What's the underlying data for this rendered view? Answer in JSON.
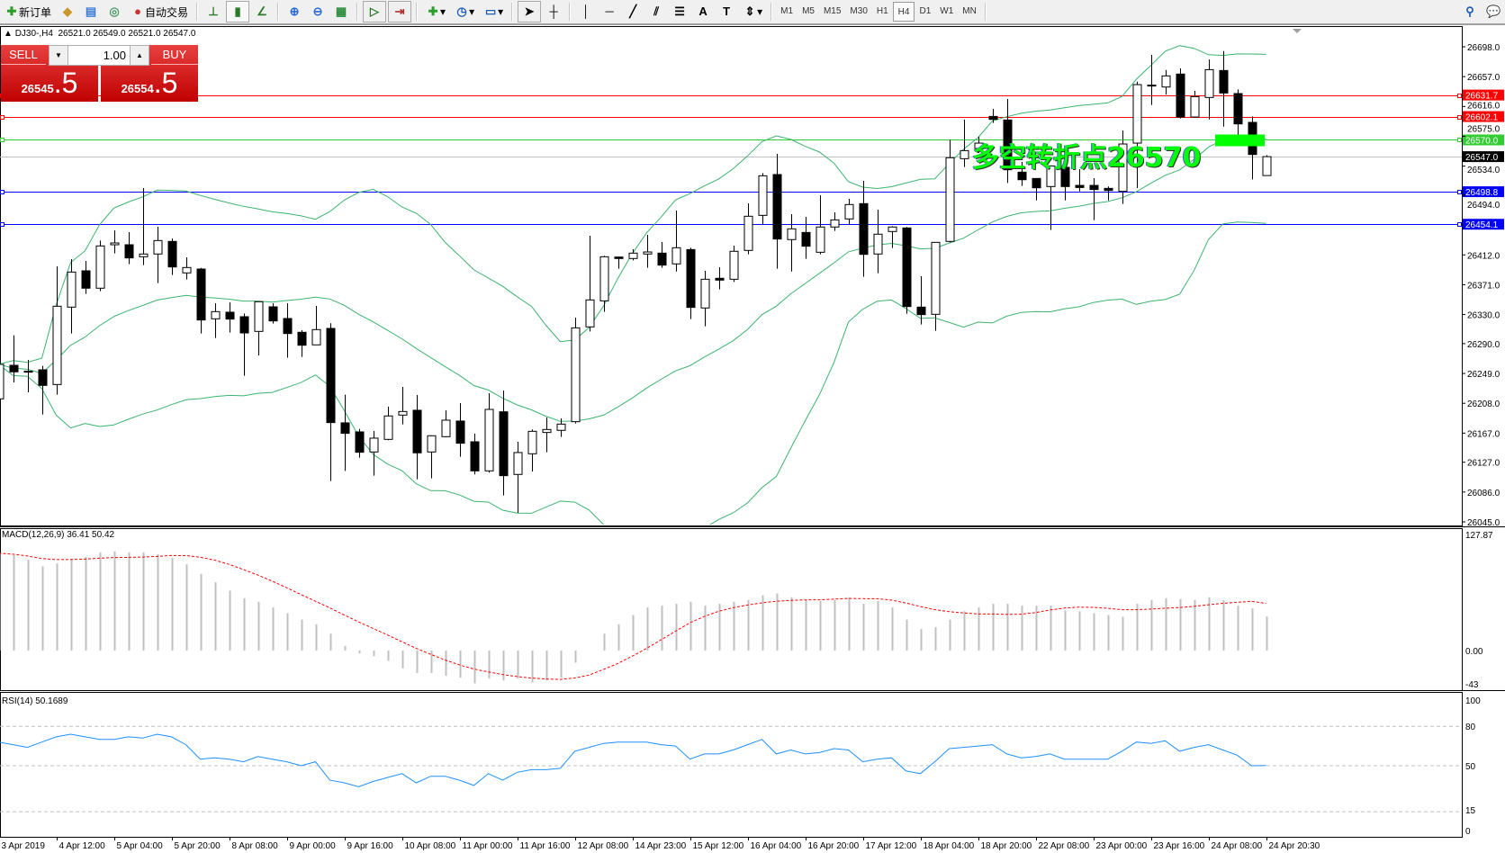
{
  "toolbar": {
    "new_order": "新订单",
    "auto_trading": "自动交易",
    "timeframes": [
      "M1",
      "M5",
      "M15",
      "M30",
      "H1",
      "H4",
      "D1",
      "W1",
      "MN"
    ],
    "active_timeframe": "H4",
    "icons": [
      "new-order-icon",
      "market-watch-icon",
      "navigator-icon",
      "signals-icon",
      "auto-trading-icon",
      "bar-chart-icon",
      "candlestick-icon",
      "line-chart-icon",
      "zoom-in-icon",
      "zoom-out-icon",
      "tile-windows-icon",
      "auto-scroll-icon",
      "chart-shift-icon",
      "indicators-icon",
      "periods-icon",
      "templates-icon",
      "cursor-icon",
      "crosshair-icon",
      "vertical-line-icon",
      "horizontal-line-icon",
      "trendline-icon",
      "equidistant-channel-icon",
      "fibonacci-icon",
      "text-icon",
      "text-label-icon",
      "arrows-icon",
      "search-icon",
      "chat-icon"
    ]
  },
  "chart": {
    "symbol_info": "DJ30-,H4",
    "ohlc": "26521.0 26549.0 26521.0 26547.0"
  },
  "trade_panel": {
    "sell_label": "SELL",
    "buy_label": "BUY",
    "lot": "1.00",
    "sell_price_main": "26545",
    "sell_price_frac": ".5",
    "buy_price_main": "26554",
    "buy_price_frac": ".5"
  },
  "annotation": {
    "text": "多空转折点26570",
    "color": "#00ff00",
    "marker_price": 26570
  },
  "chart_data": {
    "type": "candlestick",
    "candle_fields": [
      "open",
      "high",
      "low",
      "close"
    ],
    "candles": [
      [
        26214.1,
        26265,
        26210,
        26261.5
      ],
      [
        26260.2,
        26301.4,
        26236.7,
        26251.2
      ],
      [
        26252,
        26267.6,
        26223.1,
        26251.5
      ],
      [
        26254,
        26259.4,
        26192.6,
        26232.6
      ],
      [
        26233.8,
        26396.3,
        26219.8,
        26341.4
      ],
      [
        26340.2,
        26406.1,
        26303.9,
        26388.4
      ],
      [
        26390.1,
        26403.7,
        26358.3,
        26366.2
      ],
      [
        26366.2,
        26431.7,
        26362,
        26424.3
      ],
      [
        26425.9,
        26445.7,
        26414,
        26428.4
      ],
      [
        26425.9,
        26443.2,
        26399.1,
        26407.8
      ],
      [
        26409.4,
        26503.8,
        26397.9,
        26413.2
      ],
      [
        26413.2,
        26450.7,
        26373.2,
        26431.7
      ],
      [
        26430.5,
        26434.6,
        26384.3,
        26395.4
      ],
      [
        26387.2,
        26408.6,
        26378.1,
        26394.6
      ],
      [
        26392.5,
        26394,
        26303.9,
        26322.5
      ],
      [
        26324.1,
        26345.5,
        26297.7,
        26334
      ],
      [
        26333.2,
        26346.8,
        26305.2,
        26323.7
      ],
      [
        26327,
        26331.5,
        26245.8,
        26304.7
      ],
      [
        26306.8,
        26347.6,
        26273.8,
        26347.6
      ],
      [
        26340.6,
        26345.5,
        26317.5,
        26321.2
      ],
      [
        26324.5,
        26345.5,
        26270.5,
        26303.9
      ],
      [
        26305.6,
        26308.5,
        26271.8,
        26287.8
      ],
      [
        26288.3,
        26341.8,
        26288,
        26309.3
      ],
      [
        26310.9,
        26318,
        26101.1,
        26181.5
      ],
      [
        26181.1,
        26219.8,
        26115.1,
        26166.7
      ],
      [
        26168.7,
        26172.8,
        26133.3,
        26140.7
      ],
      [
        26141.1,
        26170,
        26108.5,
        26160.1
      ],
      [
        26158.4,
        26203.4,
        26157.2,
        26190.6
      ],
      [
        26191.8,
        26230.5,
        26179,
        26196.7
      ],
      [
        26198.4,
        26219.4,
        26103.6,
        26139.9
      ],
      [
        26141.1,
        26164,
        26104.8,
        26163.4
      ],
      [
        26162.1,
        26198.4,
        26161.3,
        26184.8
      ],
      [
        26183.6,
        26208.3,
        26134.5,
        26153.1
      ],
      [
        26155.1,
        26166.3,
        26110.2,
        26115.1
      ],
      [
        26115.1,
        26221.9,
        26112.7,
        26199.6
      ],
      [
        26196.3,
        26225.6,
        26081.3,
        26108.5
      ],
      [
        26110.2,
        26155.1,
        26057.4,
        26140.3
      ],
      [
        26138.6,
        26172,
        26114.3,
        26169.5
      ],
      [
        26167.9,
        26188.5,
        26140.7,
        26172
      ],
      [
        26170.8,
        26187.3,
        26161.7,
        26179.4
      ],
      [
        26182.7,
        26325.8,
        26180.3,
        26311.7
      ],
      [
        26313,
        26438.3,
        26306.8,
        26350.1
      ],
      [
        26348.8,
        26410.7,
        26333.6,
        26409.4
      ],
      [
        26409,
        26409.5,
        26393,
        26407
      ],
      [
        26407,
        26419.7,
        26404.5,
        26414.4
      ],
      [
        26413.2,
        26439.5,
        26394.2,
        26416
      ],
      [
        26414.4,
        26429.6,
        26394.2,
        26397.9
      ],
      [
        26399.6,
        26472.9,
        26389.2,
        26421.8
      ],
      [
        26419.3,
        26421.8,
        26323.7,
        26339.8
      ],
      [
        26339,
        26390.1,
        26313.8,
        26378.5
      ],
      [
        26379.8,
        26395,
        26364.5,
        26377.3
      ],
      [
        26378.5,
        26424.7,
        26374.8,
        26416.9
      ],
      [
        26418.1,
        26482.8,
        26412.7,
        26465.1
      ],
      [
        26466.3,
        26524.4,
        26454.4,
        26520.7
      ],
      [
        26522.4,
        26550.8,
        26393,
        26433.8
      ],
      [
        26433,
        26468,
        26389.2,
        26447.8
      ],
      [
        26442.8,
        26464.3,
        26406.6,
        26423.9
      ],
      [
        26415.6,
        26493.9,
        26412.7,
        26450.3
      ],
      [
        26450.3,
        26470.5,
        26444.9,
        26460.1
      ],
      [
        26461.4,
        26489,
        26454.4,
        26481.2
      ],
      [
        26482.4,
        26513.7,
        26381.8,
        26412.7
      ],
      [
        26413.2,
        26474.2,
        26386.8,
        26440.4
      ],
      [
        26444.1,
        26451.5,
        26421.4,
        26450.3
      ],
      [
        26449,
        26450.3,
        26331.1,
        26341
      ],
      [
        26340.2,
        26382.6,
        26316.3,
        26329.9
      ],
      [
        26330.3,
        26429.2,
        26307.6,
        26429.2
      ],
      [
        26430.5,
        26570.6,
        26429.2,
        26545.5
      ],
      [
        26544.2,
        26597.8,
        26532.7,
        26555.3
      ],
      [
        26558.2,
        26574.7,
        26552,
        26565.6
      ],
      [
        26602.3,
        26612.6,
        26593.3,
        26598.2
      ],
      [
        26597.4,
        26626.2,
        26510.8,
        26529
      ],
      [
        26525.7,
        26539.7,
        26506.7,
        26515.3
      ],
      [
        26517,
        26517,
        26486.9,
        26504.2
      ],
      [
        26505.9,
        26534.3,
        26446.1,
        26534.3
      ],
      [
        26532.3,
        26535.6,
        26486.9,
        26505.9
      ],
      [
        26507.5,
        26529.8,
        26499.3,
        26504.6
      ],
      [
        26507.5,
        26517.4,
        26459.7,
        26501.8
      ],
      [
        26503.4,
        26506,
        26486.9,
        26500.5
      ],
      [
        26499.3,
        26583,
        26482,
        26564.4
      ],
      [
        26565.6,
        26650,
        26503.8,
        26646
      ],
      [
        26644.8,
        26686.8,
        26618,
        26645.3
      ],
      [
        26642.7,
        26666.2,
        26632.4,
        26658
      ],
      [
        26660.5,
        26668.3,
        26599.5,
        26601.5
      ],
      [
        26601.5,
        26637.4,
        26600.7,
        26629.5
      ],
      [
        26628.3,
        26680.6,
        26598.2,
        26666.6
      ],
      [
        26665.4,
        26692.2,
        26588.3,
        26634.5
      ],
      [
        26633.7,
        26639.4,
        26576,
        26592
      ],
      [
        26594.1,
        26602.3,
        26515.8,
        26550
      ],
      [
        26521,
        26549,
        26521,
        26547
      ]
    ],
    "price_ylim": [
      26045.0,
      26698.0
    ],
    "price_ticks": [
      "26698.0",
      "26657.0",
      "26616.0",
      "26575.0",
      "26534.0",
      "26494.0",
      "26412.0",
      "26371.0",
      "26330.0",
      "26290.0",
      "26249.0",
      "26208.0",
      "26167.0",
      "26127.0",
      "26086.0",
      "26045.0"
    ],
    "bollinger_bands": {
      "period": 20,
      "deviation": 2,
      "color": "#3cb371"
    },
    "horizontal_lines": [
      {
        "price": 26631.7,
        "label": "26631.7",
        "color": "#ff0000"
      },
      {
        "price": 26602.1,
        "label": "26602.1",
        "color": "#ff0000"
      },
      {
        "price": 26570.0,
        "label": "26570.0",
        "color": "#32cd32"
      },
      {
        "price": 26547.0,
        "label": "26547.0",
        "color": "#c0c0c0",
        "label_bg": "#000000"
      },
      {
        "price": 26498.8,
        "label": "26498.8",
        "color": "#0000ff"
      },
      {
        "price": 26454.1,
        "label": "26454.1",
        "color": "#0000ff"
      }
    ],
    "time_labels": [
      "3 Apr 2019",
      "4 Apr 12:00",
      "5 Apr 04:00",
      "5 Apr 20:00",
      "8 Apr 08:00",
      "9 Apr 00:00",
      "9 Apr 16:00",
      "10 Apr 08:00",
      "11 Apr 00:00",
      "11 Apr 16:00",
      "12 Apr 08:00",
      "14 Apr 23:00",
      "15 Apr 12:00",
      "16 Apr 04:00",
      "16 Apr 20:00",
      "17 Apr 12:00",
      "18 Apr 04:00",
      "18 Apr 20:00",
      "22 Apr 08:00",
      "23 Apr 00:00",
      "23 Apr 16:00",
      "24 Apr 08:00",
      "24 Apr 20:30"
    ],
    "macd": {
      "label": "MACD(12,26,9) 36.41 50.42",
      "histogram": [
        104,
        102,
        97,
        90,
        93,
        98,
        100,
        105,
        106,
        105,
        105,
        103,
        99,
        92,
        82,
        73,
        64,
        56,
        52,
        46,
        40,
        33,
        28,
        18,
        5,
        -3,
        -6,
        -11,
        -19,
        -24,
        -24,
        -27,
        -29,
        -35,
        -30,
        -32,
        -30,
        -34,
        -32,
        -29,
        -13,
        0,
        18,
        28,
        38,
        46,
        48,
        50,
        52,
        48,
        50,
        52,
        54,
        59,
        61,
        57,
        54,
        53,
        54,
        57,
        50,
        53,
        46,
        33,
        23,
        25,
        33,
        42,
        46,
        50,
        50,
        48,
        48,
        48,
        43,
        42,
        40,
        38,
        36,
        50,
        54,
        56,
        55,
        54,
        57,
        54,
        48,
        45,
        36.41
      ],
      "signal_last": 50.42,
      "scale_labels": [
        "127.87",
        "0.00",
        "-43"
      ],
      "ylim": [
        -43,
        127.87
      ],
      "hist_color": "#c0c0c0",
      "signal_color": "#ff0000"
    },
    "rsi": {
      "label": "RSI(14) 50.1689",
      "values": [
        68,
        66,
        64,
        68,
        72,
        74,
        72,
        70,
        70,
        72,
        71,
        74,
        72,
        66,
        55,
        56,
        55,
        53,
        57,
        55,
        53,
        50,
        53,
        39,
        37,
        34,
        38,
        41,
        44,
        37,
        42,
        42,
        39,
        35,
        44,
        39,
        45,
        47,
        47,
        48,
        61,
        64,
        67,
        68,
        68,
        68,
        66,
        65,
        55,
        59,
        59,
        62,
        66,
        70,
        59,
        62,
        59,
        60,
        63,
        62,
        53,
        55,
        56,
        46,
        44,
        53,
        63,
        64,
        65,
        66,
        59,
        56,
        57,
        59,
        55,
        55,
        55,
        55,
        61,
        68,
        67,
        69,
        61,
        64,
        66,
        62,
        58,
        50,
        50.17
      ],
      "levels": [
        80,
        50,
        15
      ],
      "scale_labels": [
        "100",
        "80",
        "50",
        "15",
        "0"
      ],
      "ylim": [
        0,
        100
      ],
      "color": "#1e90ff"
    }
  }
}
